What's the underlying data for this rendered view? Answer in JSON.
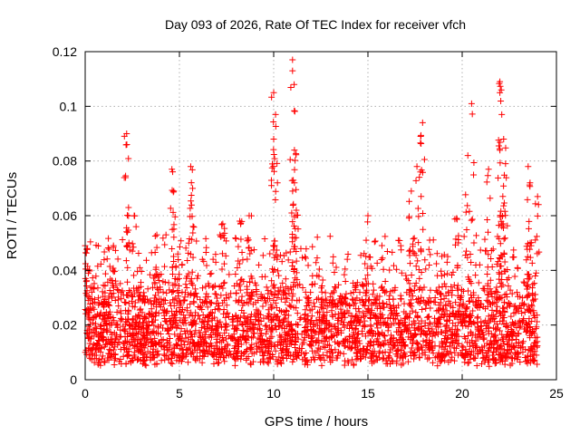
{
  "chart_data": {
    "type": "scatter",
    "title": "Day 093 of 2026, Rate Of TEC Index for receiver vfch",
    "xlabel": "GPS time / hours",
    "ylabel": "ROTI / TECUs",
    "xlim": [
      0,
      25
    ],
    "ylim": [
      0,
      0.12
    ],
    "xticks": [
      0,
      5,
      10,
      15,
      20,
      25
    ],
    "xtick_labels": [
      "0",
      "5",
      "10",
      "15",
      "20",
      "25"
    ],
    "yticks": [
      0,
      0.02,
      0.04,
      0.06,
      0.08,
      0.1,
      0.12
    ],
    "ytick_labels": [
      "0",
      "0.02",
      "0.04",
      "0.06",
      "0.08",
      "0.1",
      "0.12"
    ],
    "grid": true,
    "marker": "+",
    "color": "#ff0000",
    "series": [
      {
        "name": "ROTI",
        "note": "dense scatter of ~thousands of points; baseline 0.005-0.03 TECU/s across 0-24 h, with spikes listed below",
        "baseline_range": [
          0.004,
          0.03
        ],
        "peaks": [
          {
            "x": 0.0,
            "y": 0.049
          },
          {
            "x": 0.1,
            "y": 0.048
          },
          {
            "x": 1.5,
            "y": 0.049
          },
          {
            "x": 2.2,
            "y": 0.09
          },
          {
            "x": 2.3,
            "y": 0.063
          },
          {
            "x": 2.6,
            "y": 0.06
          },
          {
            "x": 3.8,
            "y": 0.053
          },
          {
            "x": 4.6,
            "y": 0.077
          },
          {
            "x": 4.7,
            "y": 0.069
          },
          {
            "x": 5.6,
            "y": 0.078
          },
          {
            "x": 5.7,
            "y": 0.07
          },
          {
            "x": 7.3,
            "y": 0.057
          },
          {
            "x": 8.2,
            "y": 0.058
          },
          {
            "x": 8.7,
            "y": 0.06
          },
          {
            "x": 10.0,
            "y": 0.105
          },
          {
            "x": 10.1,
            "y": 0.097
          },
          {
            "x": 10.0,
            "y": 0.088
          },
          {
            "x": 10.2,
            "y": 0.072
          },
          {
            "x": 11.0,
            "y": 0.117
          },
          {
            "x": 11.0,
            "y": 0.113
          },
          {
            "x": 11.1,
            "y": 0.084
          },
          {
            "x": 11.1,
            "y": 0.072
          },
          {
            "x": 11.2,
            "y": 0.062
          },
          {
            "x": 15.0,
            "y": 0.06
          },
          {
            "x": 17.8,
            "y": 0.089
          },
          {
            "x": 17.9,
            "y": 0.094
          },
          {
            "x": 17.6,
            "y": 0.078
          },
          {
            "x": 17.3,
            "y": 0.069
          },
          {
            "x": 19.7,
            "y": 0.059
          },
          {
            "x": 20.3,
            "y": 0.082
          },
          {
            "x": 20.5,
            "y": 0.101
          },
          {
            "x": 21.4,
            "y": 0.077
          },
          {
            "x": 22.0,
            "y": 0.109
          },
          {
            "x": 22.0,
            "y": 0.105
          },
          {
            "x": 22.1,
            "y": 0.097
          },
          {
            "x": 22.2,
            "y": 0.088
          },
          {
            "x": 22.3,
            "y": 0.079
          },
          {
            "x": 23.5,
            "y": 0.078
          },
          {
            "x": 23.6,
            "y": 0.072
          },
          {
            "x": 24.0,
            "y": 0.067
          }
        ]
      }
    ]
  }
}
